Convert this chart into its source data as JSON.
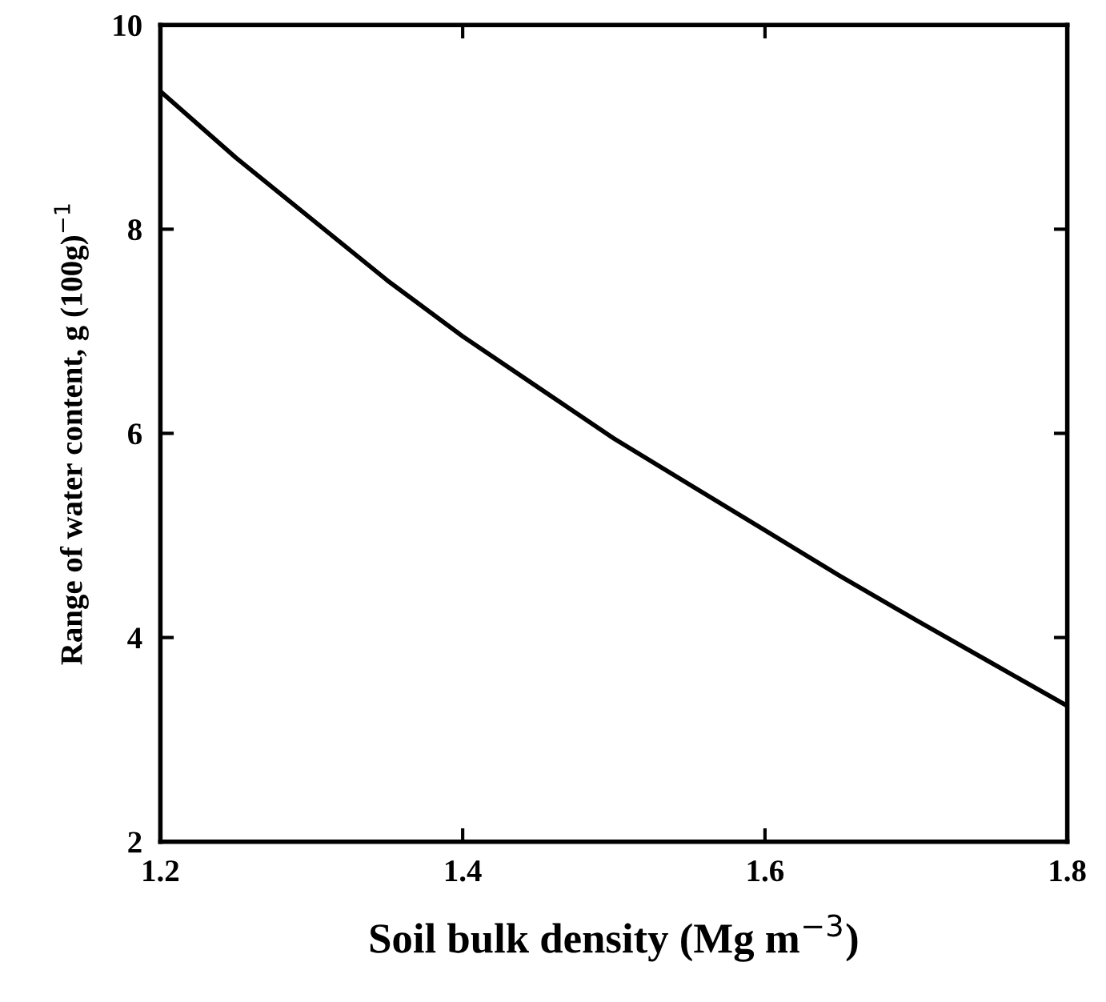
{
  "chart_data": {
    "type": "line",
    "xlabel": "Soil bulk density (Mg m$^{−3}$)",
    "ylabel": "Range of water content, g (100g)$^{−1}$",
    "x": [
      1.2,
      1.25,
      1.3,
      1.35,
      1.4,
      1.45,
      1.5,
      1.55,
      1.6,
      1.65,
      1.7,
      1.75,
      1.8
    ],
    "series": [
      {
        "color": "#000000",
        "values": [
          9.35,
          8.7,
          8.1,
          7.5,
          6.95,
          6.45,
          5.95,
          5.5,
          5.05,
          4.6,
          4.17,
          3.75,
          3.33
        ]
      }
    ],
    "xlim": [
      1.2,
      1.8
    ],
    "ylim": [
      2,
      10
    ],
    "xticks": [
      1.2,
      1.4,
      1.6,
      1.8
    ],
    "yticks": [
      2,
      4,
      6,
      8,
      10
    ],
    "grid": false,
    "marker": "none",
    "line_style": "solid"
  }
}
